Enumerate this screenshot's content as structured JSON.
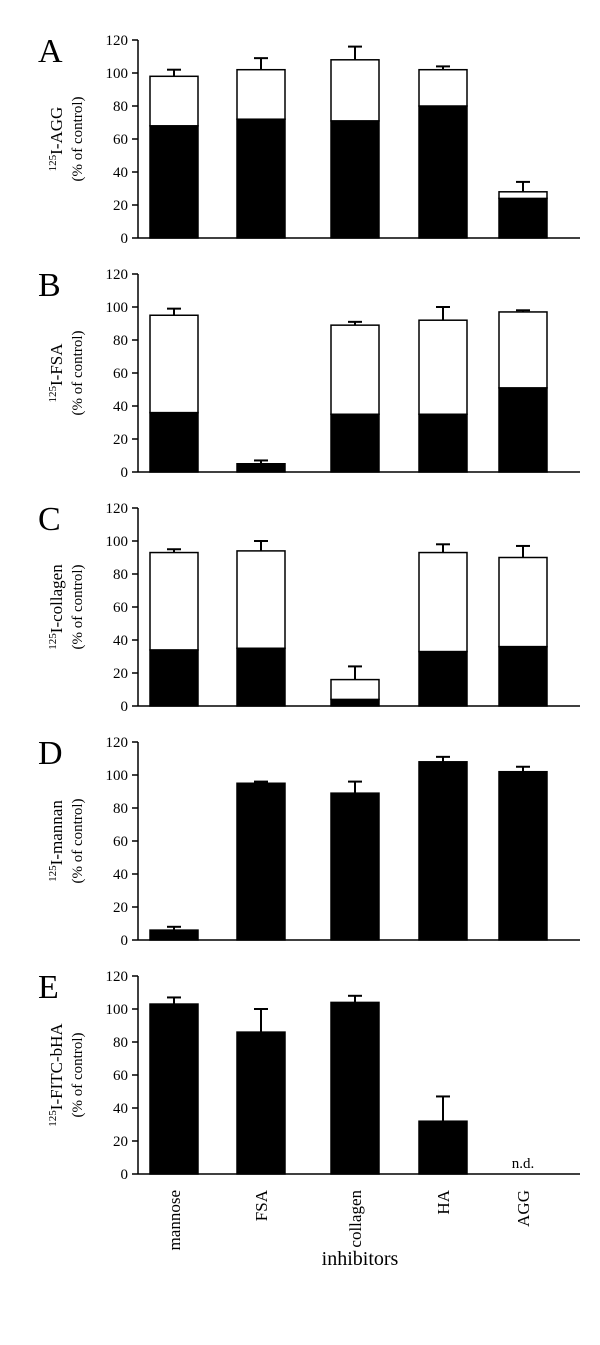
{
  "chart_data": [
    {
      "type": "bar",
      "stacked": true,
      "panel_label": "A",
      "ylabel_iso": "125",
      "ylabel_main": "I-AGG",
      "ylabel_sub": "(% of control)",
      "ylim": [
        0,
        120
      ],
      "yticks": [
        "0",
        "20",
        "40",
        "60",
        "80",
        "100",
        "120"
      ],
      "categories": [
        "mannose",
        "FSA",
        "collagen",
        "HA",
        "AGG"
      ],
      "series": [
        {
          "values": [
            68,
            72,
            71,
            80,
            24
          ],
          "color": "#000000"
        },
        {
          "values": [
            30,
            30,
            37,
            22,
            4
          ],
          "color": "#ffffff"
        }
      ],
      "errors": [
        4,
        7,
        8,
        2,
        6
      ],
      "annotations": []
    },
    {
      "type": "bar",
      "stacked": true,
      "panel_label": "B",
      "ylabel_iso": "125",
      "ylabel_main": "I-FSA",
      "ylabel_sub": "(% of control)",
      "ylim": [
        0,
        120
      ],
      "yticks": [
        "0",
        "20",
        "40",
        "60",
        "80",
        "100",
        "120"
      ],
      "categories": [
        "mannose",
        "FSA",
        "collagen",
        "HA",
        "AGG"
      ],
      "series": [
        {
          "values": [
            36,
            5,
            35,
            35,
            51
          ],
          "color": "#000000"
        },
        {
          "values": [
            59,
            0,
            54,
            57,
            46
          ],
          "color": "#ffffff"
        }
      ],
      "errors": [
        4,
        2,
        2,
        8,
        1
      ],
      "annotations": []
    },
    {
      "type": "bar",
      "stacked": true,
      "panel_label": "C",
      "ylabel_iso": "125",
      "ylabel_main": "I-collagen",
      "ylabel_sub": "(% of control)",
      "ylim": [
        0,
        120
      ],
      "yticks": [
        "0",
        "20",
        "40",
        "60",
        "80",
        "100",
        "120"
      ],
      "categories": [
        "mannose",
        "FSA",
        "collagen",
        "HA",
        "AGG"
      ],
      "series": [
        {
          "values": [
            34,
            35,
            4,
            33,
            36
          ],
          "color": "#000000"
        },
        {
          "values": [
            59,
            59,
            12,
            60,
            54
          ],
          "color": "#ffffff"
        }
      ],
      "errors": [
        2,
        6,
        8,
        5,
        7
      ],
      "annotations": []
    },
    {
      "type": "bar",
      "stacked": false,
      "panel_label": "D",
      "ylabel_iso": "125",
      "ylabel_main": "I-mannan",
      "ylabel_sub": "(% of control)",
      "ylim": [
        0,
        120
      ],
      "yticks": [
        "0",
        "20",
        "40",
        "60",
        "80",
        "100",
        "120"
      ],
      "categories": [
        "mannose",
        "FSA",
        "collagen",
        "HA",
        "AGG"
      ],
      "series": [
        {
          "values": [
            6,
            95,
            89,
            108,
            102
          ],
          "color": "#000000"
        }
      ],
      "errors": [
        2,
        1,
        7,
        3,
        3
      ],
      "annotations": []
    },
    {
      "type": "bar",
      "stacked": false,
      "panel_label": "E",
      "ylabel_iso": "125",
      "ylabel_main": "I-FITC-bHA",
      "ylabel_sub": "(% of control)",
      "ylim": [
        0,
        120
      ],
      "yticks": [
        "0",
        "20",
        "40",
        "60",
        "80",
        "100",
        "120"
      ],
      "categories": [
        "mannose",
        "FSA",
        "collagen",
        "HA",
        "AGG"
      ],
      "series": [
        {
          "values": [
            103,
            86,
            104,
            32,
            null
          ],
          "color": "#000000"
        }
      ],
      "errors": [
        4,
        14,
        4,
        15,
        null
      ],
      "annotations": [
        {
          "category_index": 4,
          "text": "n.d."
        }
      ]
    }
  ],
  "x_tick_labels": [
    "mannose",
    "FSA",
    "collagen",
    "HA",
    "AGG"
  ],
  "x_axis_label": "inhibitors"
}
